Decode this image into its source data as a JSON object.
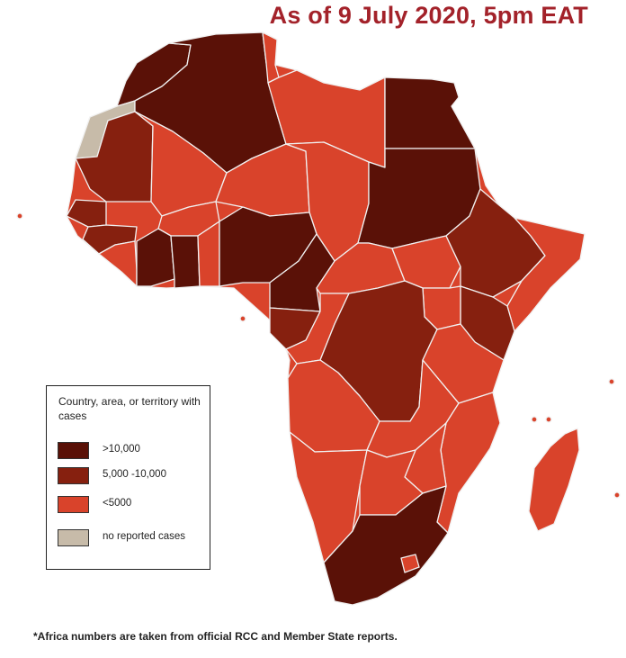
{
  "title": "As of 9 July 2020, 5pm EAT",
  "footnote": "*Africa numbers are taken from official RCC and Member State reports.",
  "legend": {
    "title": "Country, area, or territory with cases",
    "items": [
      {
        "label": ">10,000",
        "color": "#5a1107"
      },
      {
        "label": "5,000 -10,000",
        "color": "#86200f"
      },
      {
        "label": "<5000",
        "color": "#d9432b"
      },
      {
        "label": "no reported cases",
        "color": "#c7bba9"
      }
    ]
  },
  "colors": {
    "high": "#5a1107",
    "mid": "#86200f",
    "low": "#d9432b",
    "none": "#c7bba9",
    "border": "#f1f1f1",
    "title": "#a3222a"
  }
}
